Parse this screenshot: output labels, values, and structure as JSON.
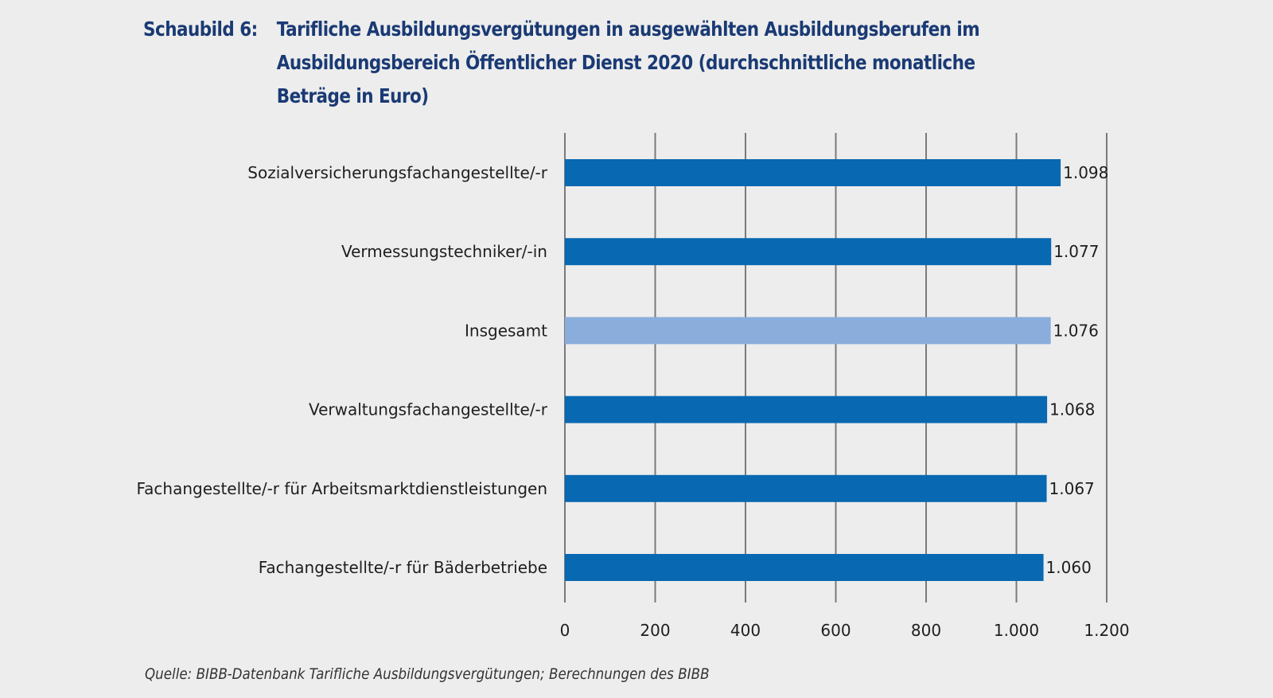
{
  "chart_data": {
    "type": "bar",
    "orientation": "horizontal",
    "title_prefix": "Schaubild 6:",
    "title_lines": [
      "Tarifliche Ausbildungsvergütungen in ausgewählten Ausbildungsberufen im",
      "Ausbildungsbereich Öffentlicher Dienst 2020 (durchschnittliche monatliche",
      "Beträge in Euro)"
    ],
    "title": "Schaubild 6: Tarifliche Ausbildungsvergütungen in ausgewählten Ausbildungsberufen im Ausbildungsbereich Öffentlicher Dienst 2020 (durchschnittliche monatliche Beträge in Euro)",
    "categories": [
      "Sozialversicherungsfachangestellte/-r",
      "Vermessungstechniker/-in",
      "Insgesamt",
      "Verwaltungsfachangestellte/-r",
      "Fachangestellte/-r für Arbeitsmarktdienstleistungen",
      "Fachangestellte/-r für Bäderbetriebe"
    ],
    "values": [
      1098,
      1077,
      1076,
      1068,
      1067,
      1060
    ],
    "value_labels": [
      "1.098",
      "1.077",
      "1.076",
      "1.068",
      "1.067",
      "1.060"
    ],
    "highlight": [
      false,
      false,
      true,
      false,
      false,
      false
    ],
    "xlabel": "",
    "ylabel": "",
    "xlim": [
      0,
      1200
    ],
    "x_ticks": [
      0,
      200,
      400,
      600,
      800,
      1000,
      1200
    ],
    "x_tick_labels": [
      "0",
      "200",
      "400",
      "600",
      "800",
      "1.000",
      "1.200"
    ],
    "grid": true,
    "legend": "none",
    "colors": {
      "bar": "#0868b1",
      "bar_highlight": "#8aaddb",
      "grid": "#7a7a7a",
      "title": "#1a3a74"
    },
    "source": "Quelle: BIBB-Datenbank Tarifliche Ausbildungsvergütungen; Berechnungen des BIBB"
  }
}
